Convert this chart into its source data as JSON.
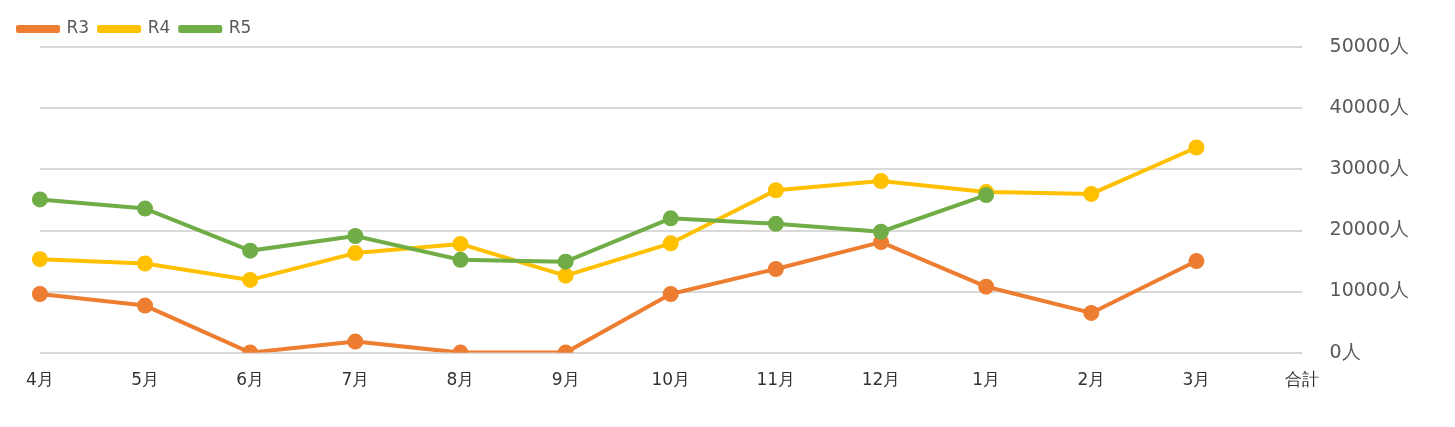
{
  "chart_data": {
    "type": "line",
    "categories": [
      "4月",
      "5月",
      "6月",
      "7月",
      "8月",
      "9月",
      "10月",
      "11月",
      "12月",
      "1月",
      "2月",
      "3月",
      "合計"
    ],
    "series": [
      {
        "name": "R3",
        "color": "#ed7d31",
        "values": [
          9600,
          7700,
          0,
          1800,
          0,
          0,
          9600,
          13700,
          18100,
          10800,
          6500,
          15000,
          null
        ]
      },
      {
        "name": "R4",
        "color": "#ffc000",
        "values": [
          15300,
          14600,
          11900,
          16300,
          17800,
          12600,
          17900,
          26600,
          28100,
          26300,
          26000,
          33600,
          null
        ]
      },
      {
        "name": "R5",
        "color": "#70ad47",
        "values": [
          25100,
          23600,
          16700,
          19100,
          15200,
          14900,
          22000,
          21100,
          19800,
          25800,
          null,
          null,
          null
        ]
      }
    ],
    "ylim": [
      0,
      50000
    ],
    "yticks": [
      {
        "value": 0,
        "label": "0人"
      },
      {
        "value": 10000,
        "label": "10000人"
      },
      {
        "value": 20000,
        "label": "20000人"
      },
      {
        "value": 30000,
        "label": "30000人"
      },
      {
        "value": 40000,
        "label": "40000人"
      },
      {
        "value": 50000,
        "label": "50000人"
      }
    ],
    "grid": "y",
    "legend": "top left",
    "marker": "circle",
    "line_style": "solid"
  }
}
